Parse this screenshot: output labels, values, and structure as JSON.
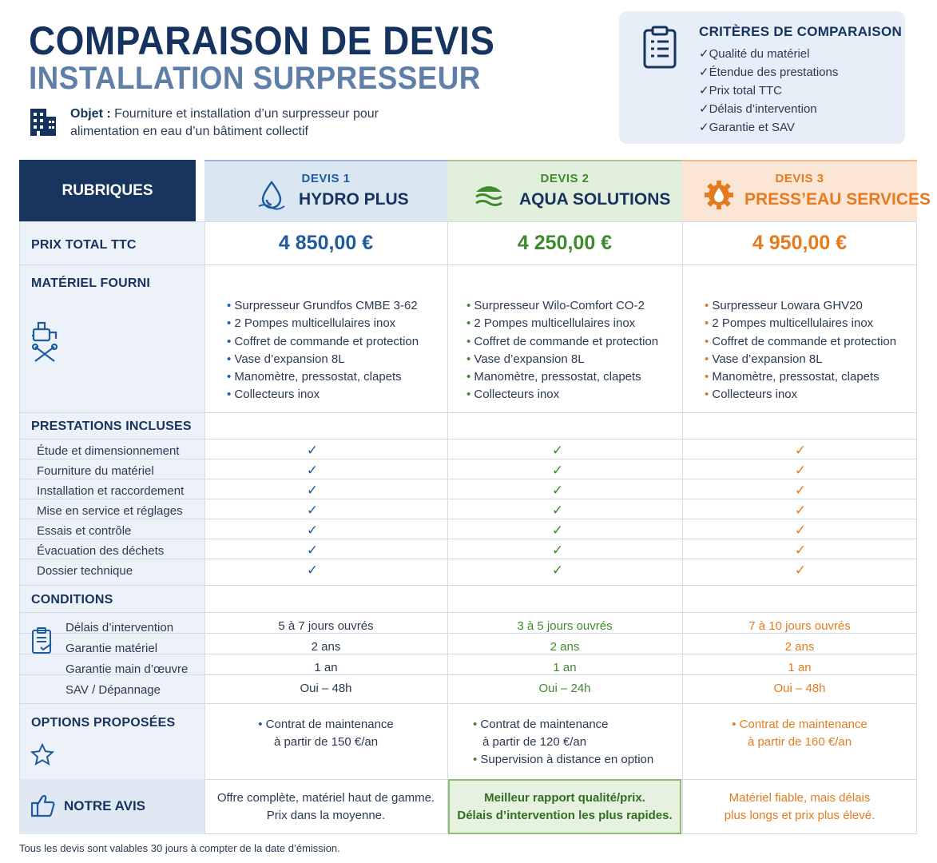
{
  "header": {
    "title_line1": "COMPARAISON DE DEVIS",
    "title_line2": "INSTALLATION SURPRESSEUR",
    "objet_label": "Objet :",
    "objet_text_1": "Fourniture et installation d’un surpresseur pour",
    "objet_text_2": "alimentation en eau d’un bâtiment collectif"
  },
  "criteria": {
    "title": "CRITÈRES DE COMPARAISON",
    "items": [
      "Qualité du matériel",
      "Étendue des prestations",
      "Prix total TTC",
      "Délais d’intervention",
      "Garantie et SAV"
    ]
  },
  "table": {
    "rubriques_label": "RUBRIQUES",
    "devis": [
      {
        "num": "DEVIS 1",
        "name": "HYDRO PLUS",
        "color": "#1f5c9e"
      },
      {
        "num": "DEVIS 2",
        "name": "AQUA SOLUTIONS",
        "color": "#3d8b2c"
      },
      {
        "num": "DEVIS 3",
        "name": "PRESS’EAU SERVICES",
        "color": "#e57b1f"
      }
    ],
    "prix_label": "PRIX TOTAL TTC",
    "prix": [
      "4 850,00 €",
      "4 250,00 €",
      "4 950,00 €"
    ],
    "materiel_label": "MATÉRIEL FOURNI",
    "materiel": [
      [
        "Surpresseur Grundfos CMBE 3-62",
        "2 Pompes multicellulaires inox",
        "Coffret de commande et protection",
        "Vase d’expansion 8L",
        "Manomètre, pressostat, clapets",
        "Collecteurs inox"
      ],
      [
        "Surpresseur Wilo-Comfort CO-2",
        "2 Pompes multicellulaires inox",
        "Coffret de commande et protection",
        "Vase d’expansion 8L",
        "Manomètre, pressostat, clapets",
        "Collecteurs inox"
      ],
      [
        "Surpresseur Lowara GHV20",
        "2 Pompes multicellulaires inox",
        "Coffret de commande et protection",
        "Vase d’expansion 8L",
        "Manomètre, pressostat, clapets",
        "Collecteurs inox"
      ]
    ],
    "prestations_label": "PRESTATIONS INCLUSES",
    "prestations": [
      "Étude et dimensionnement",
      "Fourniture du matériel",
      "Installation et raccordement",
      "Mise en service et réglages",
      "Essais et contrôle",
      "Évacuation des déchets",
      "Dossier technique"
    ],
    "check_glyph": "✓",
    "conditions_label": "CONDITIONS",
    "conditions": [
      {
        "label": "Délais d’intervention",
        "values": [
          "5 à 7 jours ouvrés",
          "3 à 5 jours ouvrés",
          "7 à 10 jours ouvrés"
        ]
      },
      {
        "label": "Garantie matériel",
        "values": [
          "2 ans",
          "2 ans",
          "2 ans"
        ]
      },
      {
        "label": "Garantie main d’œuvre",
        "values": [
          "1 an",
          "1 an",
          "1 an"
        ]
      },
      {
        "label": "SAV / Dépannage",
        "values": [
          "Oui – 48h",
          "Oui – 24h",
          "Oui – 48h"
        ]
      }
    ],
    "options_label": "OPTIONS PROPOSÉES",
    "options": {
      "d1_l1": "Contrat de maintenance",
      "d1_l2": "à partir de 150 €/an",
      "d2_l1": "Contrat de maintenance",
      "d2_l2": "à partir de 120 €/an",
      "d2_l3": "Supervision à distance en option",
      "d3_l1": "Contrat de maintenance",
      "d3_l2": "à partir de 160 €/an"
    },
    "avis_label": "NOTRE AVIS",
    "avis": [
      [
        "Offre complète, matériel haut de gamme.",
        "Prix dans la moyenne."
      ],
      [
        "Meilleur rapport qualité/prix.",
        "Délais d’intervention les plus rapides."
      ],
      [
        "Matériel fiable, mais délais",
        "plus longs et prix plus élevé."
      ]
    ]
  },
  "footnote": "Tous les devis sont valables 30 jours à compter de la date d’émission."
}
